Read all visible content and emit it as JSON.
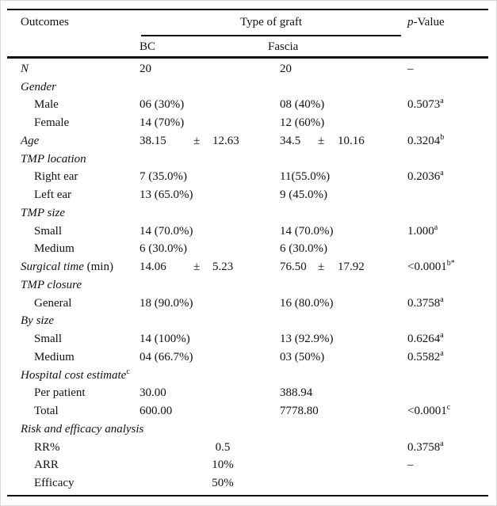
{
  "header": {
    "outcomes": "Outcomes",
    "group": "Type of graft",
    "sub": [
      "BC",
      "Fascia"
    ],
    "p_italic": "p",
    "p_rest": "-Value"
  },
  "pm": "±",
  "colors": {
    "text": "#111111",
    "rule": "#111111",
    "frame_border": "#d9d9d9",
    "background": "#ffffff"
  },
  "rows": [
    {
      "label": "N",
      "indent": false,
      "bc": "20",
      "fascia": "20",
      "p": "–"
    },
    {
      "label": "Gender",
      "indent": false
    },
    {
      "label": "Male",
      "indent": true,
      "bc": "06 (30%)",
      "fascia": "08 (40%)",
      "p": "0.5073",
      "p_sup": "a"
    },
    {
      "label": "Female",
      "indent": true,
      "bc": "14 (70%)",
      "fascia": "12 (60%)"
    },
    {
      "label": "Age",
      "indent": false,
      "bc": {
        "m": "38.15",
        "sd": "12.63"
      },
      "fascia": {
        "m": "34.5",
        "sd": "10.16"
      },
      "p": "0.3204",
      "p_sup": "b"
    },
    {
      "label": "TMP location",
      "indent": false
    },
    {
      "label": "Right ear",
      "indent": true,
      "bc": "7 (35.0%)",
      "fascia": "11(55.0%)",
      "p": "0.2036",
      "p_sup": "a"
    },
    {
      "label": "Left ear",
      "indent": true,
      "bc": "13 (65.0%)",
      "fascia": "9 (45.0%)"
    },
    {
      "label": "TMP size",
      "indent": false
    },
    {
      "label": "Small",
      "indent": true,
      "bc": "14 (70.0%)",
      "fascia": "14 (70.0%)",
      "p": "1.000",
      "p_sup": "a"
    },
    {
      "label": "Medium",
      "indent": true,
      "bc": "6 (30.0%)",
      "fascia": "6 (30.0%)"
    },
    {
      "label": "Surgical time",
      "label_suffix": " (min)",
      "indent": false,
      "bc": {
        "m": "14.06",
        "sd": "5.23"
      },
      "fascia": {
        "m": "76.50",
        "sd": "17.92"
      },
      "p": "<0.0001",
      "p_sup": "b*"
    },
    {
      "label": "TMP closure",
      "indent": false
    },
    {
      "label": "General",
      "indent": true,
      "bc": "18 (90.0%)",
      "fascia": "16 (80.0%)",
      "p": "0.3758",
      "p_sup": "a"
    },
    {
      "label": "By size",
      "indent": false
    },
    {
      "label": "Small",
      "indent": true,
      "bc": "14 (100%)",
      "fascia": "13 (92.9%)",
      "p": "0.6264",
      "p_sup": "a"
    },
    {
      "label": "Medium",
      "indent": true,
      "bc": "04 (66.7%)",
      "fascia": "03 (50%)",
      "p": "0.5582",
      "p_sup": "a"
    },
    {
      "label": "Hospital cost estimate",
      "label_sup": "c",
      "indent": false
    },
    {
      "label": "Per patient",
      "indent": true,
      "bc": "30.00",
      "fascia": "388.94"
    },
    {
      "label": "Total",
      "indent": true,
      "bc": "600.00",
      "fascia": "7778.80",
      "p": "<0.0001",
      "p_sup": "c"
    },
    {
      "label": "Risk and efficacy analysis",
      "indent": false
    },
    {
      "label": "RR%",
      "indent": true,
      "span": "0.5",
      "p": "0.3758",
      "p_sup": "a"
    },
    {
      "label": "ARR",
      "indent": true,
      "span": "10%",
      "p": "–"
    },
    {
      "label": "Efficacy",
      "indent": true,
      "span": "50%"
    }
  ]
}
